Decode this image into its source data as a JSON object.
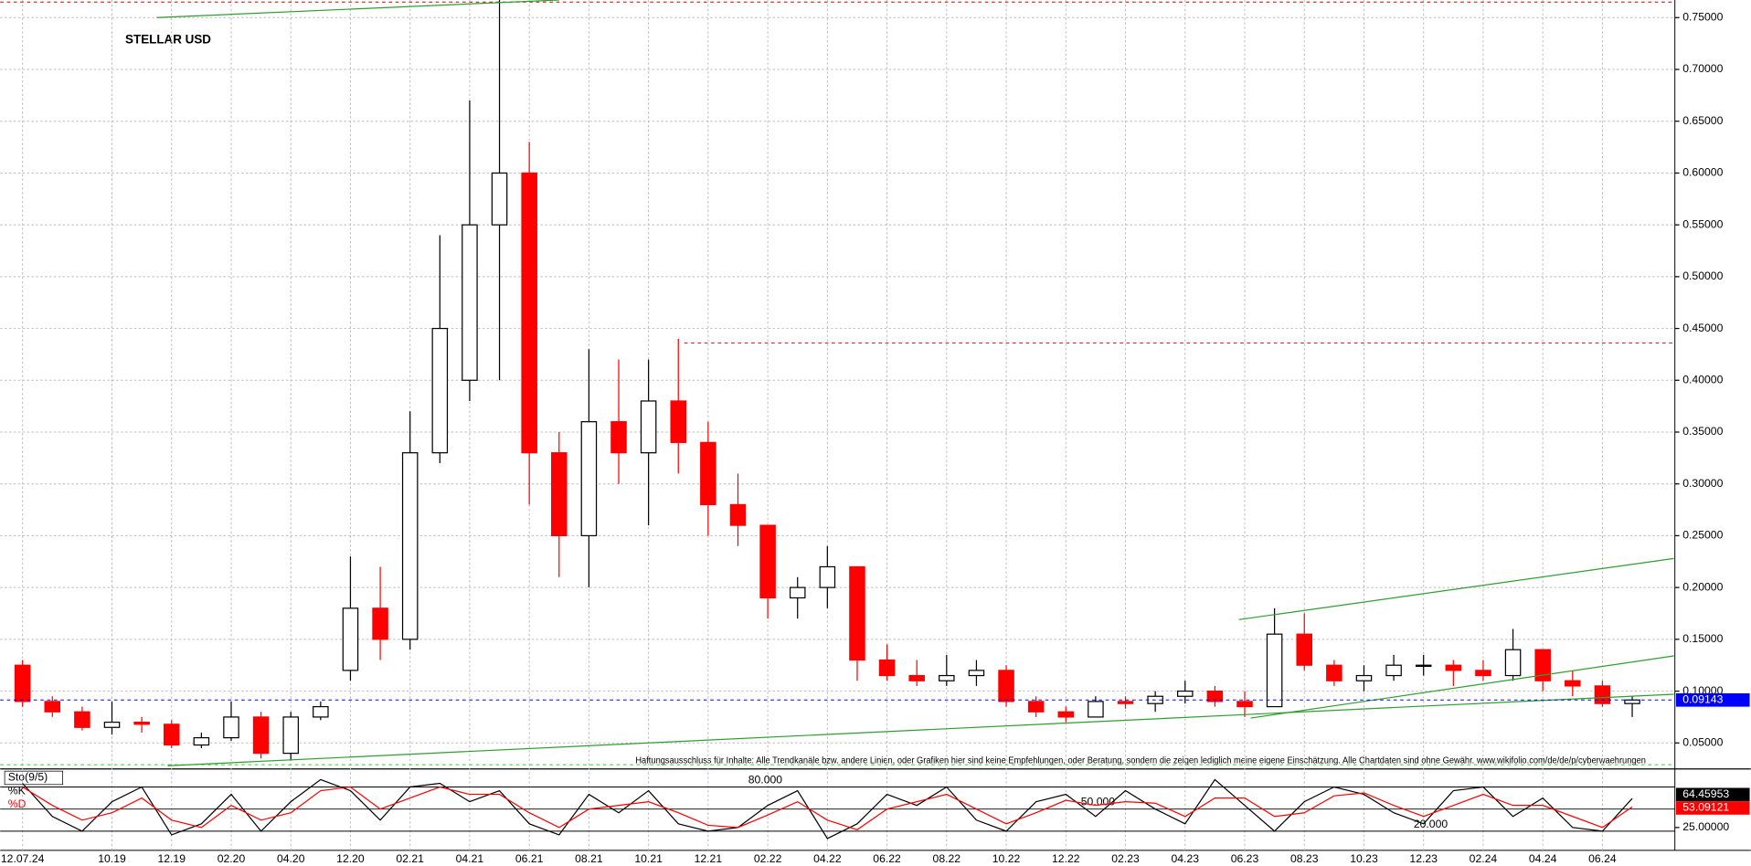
{
  "chart_data": [
    {
      "type": "candlestick",
      "title": "STELLAR USD",
      "note": "Haftungsausschluss für Inhalte: Alle Trendkanäle bzw. andere Linien, oder Grafiken hier sind keine Empfehlungen, oder Beratung, sondern die zeigen lediglich meine eigene Einschätzung. Alle Chartdaten sind ohne Gewähr.  www.wikifolio.com/de/de/p/cyberwaehrungen",
      "categories": [
        "12.07.24",
        null,
        null,
        "10.19",
        null,
        "12.19",
        null,
        "02.20",
        null,
        "04.20",
        null,
        "12.20",
        null,
        "02.21",
        null,
        "04.21",
        null,
        "06.21",
        null,
        "08.21",
        null,
        "10.21",
        null,
        "12.21",
        null,
        "02.22",
        null,
        "04.22",
        null,
        "06.22",
        null,
        "08.22",
        null,
        "10.22",
        null,
        "12.22",
        null,
        "02.23",
        null,
        "04.23",
        null,
        "06.23",
        null,
        "08.23",
        null,
        "10.23",
        null,
        "12.23",
        null,
        "02.24",
        null,
        "04.24",
        null,
        "06.24",
        null
      ],
      "open": [
        0.125,
        0.09,
        0.08,
        0.065,
        0.07,
        0.068,
        0.048,
        0.055,
        0.075,
        0.04,
        0.075,
        0.12,
        0.18,
        0.15,
        0.33,
        0.4,
        0.55,
        0.6,
        0.33,
        0.25,
        0.36,
        0.33,
        0.38,
        0.34,
        0.28,
        0.26,
        0.19,
        0.2,
        0.22,
        0.13,
        0.115,
        0.11,
        0.115,
        0.12,
        0.09,
        0.08,
        0.075,
        0.09,
        0.088,
        0.095,
        0.1,
        0.09,
        0.085,
        0.155,
        0.125,
        0.11,
        0.115,
        0.125,
        0.125,
        0.12,
        0.115,
        0.14,
        0.11,
        0.105,
        0.088
      ],
      "high": [
        0.13,
        0.095,
        0.085,
        0.09,
        0.075,
        0.072,
        0.06,
        0.09,
        0.08,
        0.08,
        0.09,
        0.23,
        0.22,
        0.37,
        0.54,
        0.67,
        0.77,
        0.63,
        0.35,
        0.43,
        0.42,
        0.42,
        0.44,
        0.36,
        0.31,
        0.26,
        0.21,
        0.24,
        0.22,
        0.145,
        0.13,
        0.135,
        0.13,
        0.125,
        0.095,
        0.085,
        0.095,
        0.095,
        0.1,
        0.11,
        0.105,
        0.1,
        0.18,
        0.175,
        0.13,
        0.125,
        0.135,
        0.135,
        0.13,
        0.13,
        0.16,
        0.14,
        0.12,
        0.11,
        0.095
      ],
      "low": [
        0.085,
        0.075,
        0.062,
        0.058,
        0.06,
        0.045,
        0.045,
        0.052,
        0.035,
        0.033,
        0.072,
        0.11,
        0.13,
        0.14,
        0.32,
        0.38,
        0.4,
        0.28,
        0.21,
        0.2,
        0.3,
        0.26,
        0.31,
        0.25,
        0.24,
        0.17,
        0.17,
        0.18,
        0.11,
        0.11,
        0.105,
        0.105,
        0.105,
        0.085,
        0.075,
        0.07,
        0.075,
        0.083,
        0.08,
        0.088,
        0.085,
        0.075,
        0.085,
        0.12,
        0.105,
        0.1,
        0.11,
        0.115,
        0.105,
        0.11,
        0.11,
        0.1,
        0.095,
        0.085,
        0.075
      ],
      "close": [
        0.09,
        0.08,
        0.065,
        0.07,
        0.068,
        0.048,
        0.055,
        0.075,
        0.04,
        0.075,
        0.085,
        0.18,
        0.15,
        0.33,
        0.45,
        0.55,
        0.6,
        0.33,
        0.25,
        0.36,
        0.33,
        0.38,
        0.34,
        0.28,
        0.26,
        0.19,
        0.2,
        0.22,
        0.13,
        0.115,
        0.11,
        0.115,
        0.12,
        0.09,
        0.08,
        0.075,
        0.09,
        0.088,
        0.095,
        0.1,
        0.09,
        0.085,
        0.155,
        0.125,
        0.11,
        0.115,
        0.125,
        0.125,
        0.12,
        0.115,
        0.14,
        0.11,
        0.105,
        0.088,
        0.09143
      ],
      "up_color": "#000000",
      "down_color": "#ff0000",
      "last_color": "#0000ff",
      "ylim": [
        0.026,
        0.767
      ],
      "yticks": [
        {
          "value": 0.05,
          "label": "0.05000"
        },
        {
          "value": 0.1,
          "label": "0.10000"
        },
        {
          "value": 0.15,
          "label": "0.15000"
        },
        {
          "value": 0.2,
          "label": "0.20000"
        },
        {
          "value": 0.25,
          "label": "0.25000"
        },
        {
          "value": 0.3,
          "label": "0.30000"
        },
        {
          "value": 0.35,
          "label": "0.35000"
        },
        {
          "value": 0.4,
          "label": "0.40000"
        },
        {
          "value": 0.45,
          "label": "0.45000"
        },
        {
          "value": 0.5,
          "label": "0.50000"
        },
        {
          "value": 0.55,
          "label": "0.55000"
        },
        {
          "value": 0.6,
          "label": "0.60000"
        },
        {
          "value": 0.65,
          "label": "0.65000"
        },
        {
          "value": 0.7,
          "label": "0.70000"
        },
        {
          "value": 0.75,
          "label": "0.75000"
        }
      ],
      "grid": true,
      "hlines": [
        {
          "value": 0.765,
          "color": "#cc0000"
        },
        {
          "value": 0.436,
          "color": "#cc0000"
        },
        {
          "value": 0.029,
          "color": "#33cc33"
        }
      ],
      "trendlines": [
        {
          "x": [
            4.5,
            18
          ],
          "y": [
            0.75,
            0.767
          ],
          "color": "#2e9e2e"
        },
        {
          "x": [
            4.87,
            55.4
          ],
          "y": [
            0.028,
            0.097
          ],
          "color": "#2e9e2e"
        },
        {
          "x": [
            40.8,
            55.4
          ],
          "y": [
            0.169,
            0.228
          ],
          "color": "#2e9e2e"
        },
        {
          "x": [
            41.2,
            55.4
          ],
          "y": [
            0.074,
            0.134
          ],
          "color": "#2e9e2e"
        }
      ]
    },
    {
      "type": "line",
      "title": "Sto(9/5)",
      "series": [
        {
          "name": "%K",
          "color": "#000000",
          "values": [
            85,
            40,
            20,
            60,
            80,
            15,
            30,
            70,
            20,
            60,
            90,
            75,
            35,
            80,
            85,
            60,
            75,
            30,
            15,
            70,
            45,
            75,
            30,
            20,
            25,
            55,
            75,
            10,
            30,
            70,
            55,
            80,
            35,
            20,
            60,
            70,
            40,
            75,
            50,
            30,
            90,
            55,
            20,
            60,
            80,
            70,
            45,
            30,
            75,
            80,
            40,
            65,
            25,
            20,
            64.45953
          ]
        },
        {
          "name": "%D",
          "color": "#ff0000",
          "values": [
            80,
            55,
            35,
            45,
            65,
            35,
            25,
            55,
            35,
            45,
            75,
            80,
            50,
            65,
            80,
            70,
            70,
            45,
            25,
            50,
            55,
            60,
            45,
            28,
            25,
            42,
            60,
            35,
            22,
            50,
            60,
            70,
            50,
            30,
            45,
            62,
            55,
            60,
            58,
            40,
            65,
            65,
            40,
            45,
            68,
            72,
            55,
            40,
            55,
            70,
            55,
            55,
            40,
            25,
            53.09121
          ]
        }
      ],
      "ylim": [
        0,
        100
      ],
      "yticks": [
        {
          "value": 25,
          "label": "25.00000"
        }
      ],
      "levels": [
        {
          "value": 80,
          "label": "80.000"
        },
        {
          "value": 50,
          "label": "50.000"
        },
        {
          "value": 20,
          "label": "20.000"
        }
      ]
    }
  ]
}
